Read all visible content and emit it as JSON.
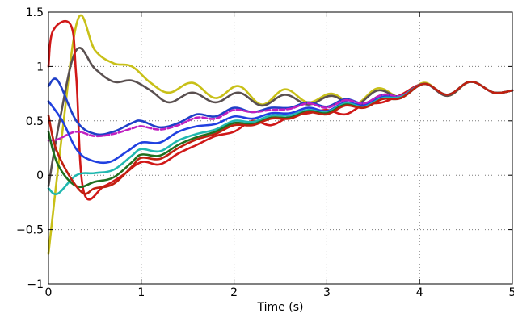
{
  "chart_data": {
    "type": "line",
    "title": "",
    "xlabel": "Time (s)",
    "ylabel": "",
    "xlim": [
      0,
      5
    ],
    "ylim": [
      -1,
      1.5
    ],
    "xticks": [
      0,
      1,
      2,
      3,
      4,
      5
    ],
    "yticks": [
      -1,
      -0.5,
      0,
      0.5,
      1,
      1.5
    ],
    "xtick_labels": [
      "0",
      "1",
      "2",
      "3",
      "4",
      "5"
    ],
    "ytick_labels": [
      "−1",
      "−0.5",
      "0",
      "0.5",
      "1",
      "1.5"
    ],
    "grid": true,
    "series": [
      {
        "color": "#c8c018",
        "x": [
          0,
          0.15,
          0.32,
          0.5,
          0.7,
          0.9,
          1.1,
          1.3,
          1.55,
          1.8,
          2.05,
          2.3,
          2.55,
          2.8,
          3.05,
          3.3,
          3.55,
          3.8,
          4.05,
          4.3,
          4.55,
          4.8,
          5
        ],
        "y": [
          -0.72,
          0.4,
          1.44,
          1.15,
          1.03,
          1.0,
          0.85,
          0.76,
          0.85,
          0.71,
          0.82,
          0.65,
          0.79,
          0.67,
          0.75,
          0.65,
          0.8,
          0.72,
          0.85,
          0.73,
          0.86,
          0.76,
          0.78
        ]
      },
      {
        "color": "#5a5050",
        "x": [
          0,
          0.12,
          0.3,
          0.5,
          0.7,
          0.9,
          1.1,
          1.3,
          1.55,
          1.8,
          2.05,
          2.3,
          2.55,
          2.8,
          3.05,
          3.3,
          3.55,
          3.8,
          4.05,
          4.3,
          4.55,
          4.8,
          5
        ],
        "y": [
          -0.1,
          0.5,
          1.15,
          0.98,
          0.86,
          0.87,
          0.78,
          0.67,
          0.76,
          0.67,
          0.76,
          0.64,
          0.74,
          0.65,
          0.73,
          0.64,
          0.78,
          0.72,
          0.84,
          0.73,
          0.86,
          0.76,
          0.78
        ]
      },
      {
        "color": "#d01818",
        "x": [
          0,
          0.05,
          0.24,
          0.3,
          0.38,
          0.6,
          0.8,
          1.0,
          1.2,
          1.4,
          1.6,
          1.8,
          2.0,
          2.2,
          2.4,
          2.6,
          2.8,
          3.0,
          3.2,
          3.4,
          3.6,
          3.8,
          4.05,
          4.3,
          4.55,
          4.8,
          5
        ],
        "y": [
          1.0,
          1.33,
          1.38,
          0.9,
          -0.15,
          -0.1,
          0.0,
          0.12,
          0.1,
          0.2,
          0.28,
          0.36,
          0.4,
          0.5,
          0.46,
          0.54,
          0.57,
          0.6,
          0.56,
          0.65,
          0.67,
          0.74,
          0.84,
          0.74,
          0.86,
          0.76,
          0.78
        ]
      },
      {
        "color": "#1f3fc8",
        "x": [
          0,
          0.1,
          0.3,
          0.5,
          0.7,
          0.9,
          1.0,
          1.2,
          1.4,
          1.6,
          1.8,
          2.0,
          2.2,
          2.4,
          2.6,
          2.8,
          3.0,
          3.2,
          3.4,
          3.6,
          3.8,
          4.05,
          4.3,
          4.55,
          4.8,
          5
        ],
        "y": [
          0.82,
          0.87,
          0.5,
          0.38,
          0.4,
          0.48,
          0.5,
          0.44,
          0.48,
          0.56,
          0.54,
          0.62,
          0.58,
          0.62,
          0.62,
          0.67,
          0.63,
          0.7,
          0.66,
          0.74,
          0.73,
          0.84,
          0.74,
          0.86,
          0.76,
          0.78
        ]
      },
      {
        "color": "#c020c0",
        "x": [
          0,
          0.1,
          0.3,
          0.5,
          0.7,
          0.9,
          1.0,
          1.2,
          1.4,
          1.6,
          1.8,
          2.0,
          2.2,
          2.4,
          2.6,
          2.8,
          3.0,
          3.2,
          3.4,
          3.6,
          3.8,
          4.05,
          4.3,
          4.55,
          4.8,
          5
        ],
        "y": [
          0.32,
          0.33,
          0.4,
          0.36,
          0.38,
          0.43,
          0.45,
          0.42,
          0.46,
          0.53,
          0.52,
          0.6,
          0.58,
          0.6,
          0.61,
          0.66,
          0.62,
          0.69,
          0.66,
          0.74,
          0.73,
          0.84,
          0.74,
          0.86,
          0.76,
          0.78
        ]
      },
      {
        "color": "#2040e0",
        "x": [
          0,
          0.15,
          0.3,
          0.45,
          0.65,
          0.85,
          1.0,
          1.2,
          1.4,
          1.6,
          1.8,
          2.0,
          2.2,
          2.4,
          2.6,
          2.8,
          3.0,
          3.2,
          3.4,
          3.6,
          3.8,
          4.05,
          4.3,
          4.55,
          4.8,
          5
        ],
        "y": [
          0.68,
          0.5,
          0.24,
          0.14,
          0.12,
          0.22,
          0.3,
          0.3,
          0.4,
          0.45,
          0.47,
          0.54,
          0.52,
          0.57,
          0.57,
          0.62,
          0.59,
          0.67,
          0.64,
          0.72,
          0.72,
          0.84,
          0.74,
          0.86,
          0.76,
          0.78
        ]
      },
      {
        "color": "#20b8b0",
        "x": [
          0,
          0.1,
          0.3,
          0.5,
          0.7,
          0.9,
          1.0,
          1.2,
          1.4,
          1.6,
          1.8,
          2.0,
          2.2,
          2.4,
          2.6,
          2.8,
          3.0,
          3.2,
          3.4,
          3.6,
          3.8,
          4.05,
          4.3,
          4.55,
          4.8,
          5
        ],
        "y": [
          -0.12,
          -0.17,
          0.0,
          0.02,
          0.05,
          0.18,
          0.24,
          0.22,
          0.32,
          0.38,
          0.42,
          0.5,
          0.49,
          0.55,
          0.55,
          0.6,
          0.58,
          0.66,
          0.63,
          0.71,
          0.72,
          0.84,
          0.74,
          0.86,
          0.76,
          0.78
        ]
      },
      {
        "color": "#207020",
        "x": [
          0,
          0.1,
          0.3,
          0.5,
          0.7,
          0.9,
          1.0,
          1.2,
          1.4,
          1.6,
          1.8,
          2.0,
          2.2,
          2.4,
          2.6,
          2.8,
          3.0,
          3.2,
          3.4,
          3.6,
          3.8,
          4.05,
          4.3,
          4.55,
          4.8,
          5
        ],
        "y": [
          0.4,
          0.1,
          -0.1,
          -0.06,
          -0.02,
          0.12,
          0.19,
          0.18,
          0.28,
          0.35,
          0.4,
          0.48,
          0.47,
          0.53,
          0.53,
          0.59,
          0.57,
          0.65,
          0.62,
          0.7,
          0.71,
          0.84,
          0.74,
          0.86,
          0.76,
          0.78
        ]
      },
      {
        "color": "#c02010",
        "x": [
          0,
          0.1,
          0.35,
          0.5,
          0.7,
          0.9,
          1.0,
          1.2,
          1.4,
          1.6,
          1.8,
          2.0,
          2.2,
          2.4,
          2.6,
          2.8,
          3.0,
          3.2,
          3.4,
          3.6,
          3.8,
          4.05,
          4.3,
          4.55,
          4.8,
          5
        ],
        "y": [
          0.55,
          0.2,
          -0.15,
          -0.12,
          -0.08,
          0.08,
          0.16,
          0.15,
          0.25,
          0.33,
          0.38,
          0.46,
          0.46,
          0.52,
          0.52,
          0.58,
          0.56,
          0.64,
          0.62,
          0.7,
          0.71,
          0.84,
          0.74,
          0.86,
          0.76,
          0.78
        ]
      }
    ]
  }
}
